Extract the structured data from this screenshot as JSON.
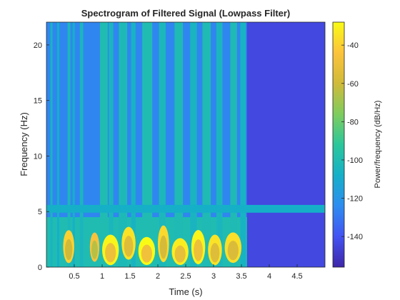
{
  "chart_data": {
    "type": "heatmap",
    "title": "Spectrogram of Filtered Signal (Lowpass Filter)",
    "xlabel": "Time (s)",
    "ylabel": "Frequency (Hz)",
    "colorbar_label": "Power/frequency (dB/Hz)",
    "xlim": [
      0,
      5.0
    ],
    "ylim": [
      0,
      22.05
    ],
    "clim": [
      -156,
      -28
    ],
    "x_ticks": [
      0.5,
      1,
      1.5,
      2,
      2.5,
      3,
      3.5,
      4,
      4.5
    ],
    "x_tick_labels": [
      "0.5",
      "1",
      "1.5",
      "2",
      "2.5",
      "3",
      "3.5",
      "4",
      "4.5"
    ],
    "y_ticks": [
      0,
      5,
      10,
      15,
      20
    ],
    "y_tick_labels": [
      "0",
      "5",
      "10",
      "15",
      "20"
    ],
    "colorbar_ticks": [
      -40,
      -60,
      -80,
      -100,
      -120,
      -140
    ],
    "colorbar_tick_labels": [
      "-40",
      "-60",
      "-80",
      "-100",
      "-120",
      "-140"
    ],
    "colormap": [
      "#3e26a8",
      "#4353f3",
      "#2d8df0",
      "#15b0c8",
      "#2bc79b",
      "#7fcc5e",
      "#d0ba3a",
      "#fcc33b",
      "#f9fb15"
    ],
    "background_level_db": -126,
    "quiet_region_level_db": -144,
    "active_interval_s": [
      1.0,
      3.6
    ],
    "vertical_bands": [
      {
        "t0": 0.07,
        "t1": 0.11,
        "db": -105
      },
      {
        "t0": 0.19,
        "t1": 0.23,
        "db": -108
      },
      {
        "t0": 0.38,
        "t1": 0.43,
        "db": -103
      },
      {
        "t0": 0.47,
        "t1": 0.51,
        "db": -108
      },
      {
        "t0": 0.6,
        "t1": 0.66,
        "db": -104
      },
      {
        "t0": 0.96,
        "t1": 1.1,
        "db": -100
      },
      {
        "t0": 1.12,
        "t1": 1.2,
        "db": -104
      },
      {
        "t0": 1.3,
        "t1": 1.45,
        "db": -102
      },
      {
        "t0": 1.52,
        "t1": 1.6,
        "db": -106
      },
      {
        "t0": 1.72,
        "t1": 1.9,
        "db": -100
      },
      {
        "t0": 2.02,
        "t1": 2.14,
        "db": -103
      },
      {
        "t0": 2.3,
        "t1": 2.45,
        "db": -101
      },
      {
        "t0": 2.58,
        "t1": 2.7,
        "db": -105
      },
      {
        "t0": 2.8,
        "t1": 2.95,
        "db": -101
      },
      {
        "t0": 3.05,
        "t1": 3.16,
        "db": -104
      },
      {
        "t0": 3.3,
        "t1": 3.42,
        "db": -101
      },
      {
        "t0": 3.48,
        "t1": 3.58,
        "db": -106
      }
    ],
    "horizontal_band": {
      "f0": 4.9,
      "f1": 5.6,
      "db": -108
    },
    "low_band": {
      "f_max": 4.5,
      "t0": 0.0,
      "t1": 3.6,
      "db": -100
    },
    "energy_blobs": [
      {
        "t0": 0.3,
        "t1": 0.5,
        "f0": 0.5,
        "f1": 3.2,
        "db": -60
      },
      {
        "t0": 0.78,
        "t1": 0.95,
        "f0": 0.6,
        "f1": 3.0,
        "db": -65
      },
      {
        "t0": 1.0,
        "t1": 1.3,
        "f0": 0.3,
        "f1": 2.8,
        "db": -50
      },
      {
        "t0": 1.35,
        "t1": 1.6,
        "f0": 0.8,
        "f1": 3.5,
        "db": -55
      },
      {
        "t0": 1.65,
        "t1": 1.95,
        "f0": 0.3,
        "f1": 2.6,
        "db": -48
      },
      {
        "t0": 2.0,
        "t1": 2.2,
        "f0": 0.6,
        "f1": 3.6,
        "db": -58
      },
      {
        "t0": 2.25,
        "t1": 2.55,
        "f0": 0.3,
        "f1": 2.5,
        "db": -52
      },
      {
        "t0": 2.6,
        "t1": 2.85,
        "f0": 0.4,
        "f1": 3.2,
        "db": -50
      },
      {
        "t0": 2.9,
        "t1": 3.15,
        "f0": 0.3,
        "f1": 2.8,
        "db": -55
      },
      {
        "t0": 3.2,
        "t1": 3.5,
        "f0": 0.5,
        "f1": 3.0,
        "db": -56
      }
    ],
    "grid": false,
    "colorbar_position": "right"
  }
}
